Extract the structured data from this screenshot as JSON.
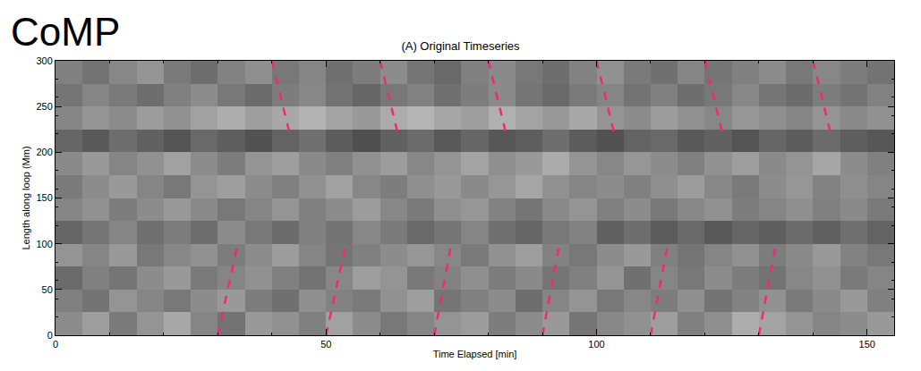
{
  "chart_data": {
    "type": "heatmap",
    "title": "(A) Original Timeseries",
    "annotations": [
      {
        "text": "CoMP"
      }
    ],
    "x_label": "Time Elapsed [min]",
    "y_label": "Length along loop (Mm)",
    "xlim": [
      0,
      155
    ],
    "ylim": [
      0,
      300
    ],
    "xticks": [
      0,
      50,
      100,
      150
    ],
    "yticks": [
      0,
      50,
      100,
      150,
      200,
      250,
      300
    ],
    "grid": false,
    "heatmap": {
      "x": [
        2.5,
        7.5,
        12.5,
        17.5,
        22.5,
        27.5,
        32.5,
        37.5,
        42.5,
        47.5,
        52.5,
        57.5,
        62.5,
        67.5,
        72.5,
        77.5,
        82.5,
        87.5,
        92.5,
        97.5,
        102.5,
        107.5,
        112.5,
        117.5,
        122.5,
        127.5,
        132.5,
        137.5,
        142.5,
        147.5,
        152.5
      ],
      "y": [
        12.5,
        37.5,
        62.5,
        87.5,
        112.5,
        137.5,
        162.5,
        187.5,
        212.5,
        237.5,
        262.5,
        287.5
      ],
      "zlim": [
        0,
        1
      ],
      "z": [
        [
          0.55,
          0.62,
          0.48,
          0.58,
          0.66,
          0.52,
          0.45,
          0.6,
          0.57,
          0.5,
          0.63,
          0.55,
          0.47,
          0.52,
          0.58,
          0.61,
          0.49,
          0.55,
          0.6,
          0.46,
          0.53,
          0.57,
          0.62,
          0.5,
          0.56,
          0.68,
          0.64,
          0.58,
          0.52,
          0.55,
          0.6
        ],
        [
          0.5,
          0.45,
          0.58,
          0.52,
          0.47,
          0.55,
          0.6,
          0.49,
          0.44,
          0.56,
          0.51,
          0.48,
          0.57,
          0.62,
          0.46,
          0.5,
          0.55,
          0.43,
          0.52,
          0.58,
          0.47,
          0.53,
          0.49,
          0.56,
          0.45,
          0.51,
          0.57,
          0.48,
          0.54,
          0.6,
          0.5
        ],
        [
          0.42,
          0.5,
          0.46,
          0.55,
          0.6,
          0.48,
          0.52,
          0.57,
          0.5,
          0.45,
          0.53,
          0.62,
          0.58,
          0.47,
          0.51,
          0.56,
          0.49,
          0.54,
          0.46,
          0.5,
          0.58,
          0.44,
          0.52,
          0.47,
          0.55,
          0.49,
          0.45,
          0.53,
          0.57,
          0.48,
          0.52
        ],
        [
          0.58,
          0.52,
          0.6,
          0.47,
          0.53,
          0.57,
          0.49,
          0.55,
          0.61,
          0.52,
          0.46,
          0.5,
          0.55,
          0.59,
          0.53,
          0.48,
          0.57,
          0.62,
          0.51,
          0.47,
          0.55,
          0.6,
          0.5,
          0.46,
          0.52,
          0.57,
          0.49,
          0.54,
          0.6,
          0.51,
          0.47
        ],
        [
          0.4,
          0.46,
          0.52,
          0.44,
          0.49,
          0.43,
          0.55,
          0.47,
          0.42,
          0.5,
          0.45,
          0.53,
          0.48,
          0.41,
          0.46,
          0.52,
          0.44,
          0.4,
          0.47,
          0.51,
          0.38,
          0.43,
          0.36,
          0.41,
          0.35,
          0.4,
          0.37,
          0.42,
          0.38,
          0.44,
          0.39
        ],
        [
          0.52,
          0.57,
          0.49,
          0.55,
          0.6,
          0.54,
          0.47,
          0.52,
          0.58,
          0.5,
          0.55,
          0.61,
          0.53,
          0.48,
          0.56,
          0.59,
          0.51,
          0.46,
          0.54,
          0.58,
          0.5,
          0.55,
          0.47,
          0.53,
          0.57,
          0.49,
          0.52,
          0.56,
          0.5,
          0.54,
          0.48
        ],
        [
          0.48,
          0.55,
          0.6,
          0.52,
          0.47,
          0.58,
          0.62,
          0.55,
          0.5,
          0.57,
          0.63,
          0.53,
          0.49,
          0.56,
          0.6,
          0.54,
          0.59,
          0.65,
          0.57,
          0.52,
          0.55,
          0.5,
          0.56,
          0.61,
          0.53,
          0.48,
          0.55,
          0.59,
          0.51,
          0.56,
          0.52
        ],
        [
          0.54,
          0.6,
          0.52,
          0.57,
          0.63,
          0.55,
          0.49,
          0.58,
          0.62,
          0.54,
          0.5,
          0.57,
          0.61,
          0.53,
          0.58,
          0.64,
          0.56,
          0.6,
          0.67,
          0.58,
          0.53,
          0.59,
          0.55,
          0.5,
          0.57,
          0.62,
          0.54,
          0.58,
          0.65,
          0.55,
          0.5
        ],
        [
          0.4,
          0.35,
          0.43,
          0.38,
          0.33,
          0.41,
          0.37,
          0.32,
          0.39,
          0.44,
          0.36,
          0.31,
          0.38,
          0.42,
          0.35,
          0.4,
          0.34,
          0.37,
          0.43,
          0.36,
          0.32,
          0.39,
          0.41,
          0.35,
          0.38,
          0.33,
          0.4,
          0.36,
          0.42,
          0.37,
          0.34
        ],
        [
          0.52,
          0.58,
          0.55,
          0.61,
          0.57,
          0.63,
          0.68,
          0.62,
          0.66,
          0.7,
          0.64,
          0.6,
          0.67,
          0.71,
          0.65,
          0.62,
          0.69,
          0.64,
          0.6,
          0.66,
          0.58,
          0.55,
          0.61,
          0.57,
          0.53,
          0.59,
          0.56,
          0.52,
          0.58,
          0.54,
          0.57
        ],
        [
          0.46,
          0.52,
          0.48,
          0.43,
          0.5,
          0.55,
          0.47,
          0.42,
          0.49,
          0.53,
          0.45,
          0.4,
          0.47,
          0.51,
          0.44,
          0.49,
          0.54,
          0.46,
          0.41,
          0.48,
          0.52,
          0.45,
          0.5,
          0.43,
          0.47,
          0.53,
          0.46,
          0.42,
          0.49,
          0.45,
          0.51
        ],
        [
          0.5,
          0.45,
          0.53,
          0.58,
          0.48,
          0.43,
          0.51,
          0.56,
          0.47,
          0.52,
          0.44,
          0.49,
          0.55,
          0.46,
          0.41,
          0.5,
          0.54,
          0.47,
          0.43,
          0.51,
          0.57,
          0.48,
          0.44,
          0.52,
          0.46,
          0.5,
          0.55,
          0.47,
          0.53,
          0.49,
          0.45
        ]
      ]
    },
    "series": [
      {
        "type": "line",
        "color": "#f0287a",
        "line_style": "dash",
        "x": [
          40,
          43.5
        ],
        "values": [
          300,
          215
        ]
      },
      {
        "type": "line",
        "color": "#f0287a",
        "line_style": "dash",
        "x": [
          60,
          63.5
        ],
        "values": [
          300,
          215
        ]
      },
      {
        "type": "line",
        "color": "#f0287a",
        "line_style": "dash",
        "x": [
          80,
          83.5
        ],
        "values": [
          300,
          215
        ]
      },
      {
        "type": "line",
        "color": "#f0287a",
        "line_style": "dash",
        "x": [
          100,
          103.5
        ],
        "values": [
          300,
          215
        ]
      },
      {
        "type": "line",
        "color": "#f0287a",
        "line_style": "dash",
        "x": [
          120,
          123.5
        ],
        "values": [
          300,
          215
        ]
      },
      {
        "type": "line",
        "color": "#f0287a",
        "line_style": "dash",
        "x": [
          140,
          143.5
        ],
        "values": [
          300,
          215
        ]
      },
      {
        "type": "line",
        "color": "#f0287a",
        "line_style": "dash",
        "x": [
          30,
          33.5
        ],
        "values": [
          0,
          95
        ]
      },
      {
        "type": "line",
        "color": "#f0287a",
        "line_style": "dash",
        "x": [
          50,
          53.5
        ],
        "values": [
          0,
          95
        ]
      },
      {
        "type": "line",
        "color": "#f0287a",
        "line_style": "dash",
        "x": [
          70,
          73
        ],
        "values": [
          0,
          95
        ]
      },
      {
        "type": "line",
        "color": "#f0287a",
        "line_style": "dash",
        "x": [
          90,
          93
        ],
        "values": [
          0,
          95
        ]
      },
      {
        "type": "line",
        "color": "#f0287a",
        "line_style": "dash",
        "x": [
          110,
          113
        ],
        "values": [
          0,
          95
        ]
      },
      {
        "type": "line",
        "color": "#f0287a",
        "line_style": "dash",
        "x": [
          130,
          133
        ],
        "values": [
          0,
          95
        ]
      }
    ]
  }
}
